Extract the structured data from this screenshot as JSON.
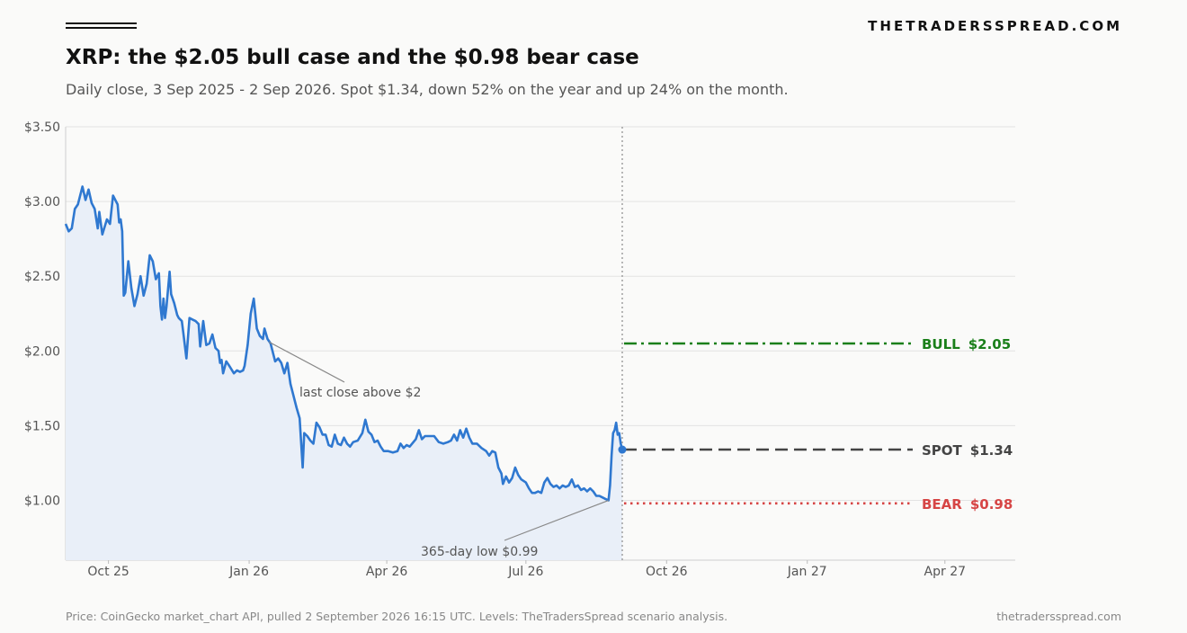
{
  "header": {
    "brand": "THETRADERSSPREAD.COM",
    "title": "XRP: the $2.05 bull case and the $0.98 bear case",
    "subtitle": "Daily close, 3 Sep 2025 - 2 Sep 2026. Spot $1.34, down 52% on the year and up 24% on the month."
  },
  "footer": {
    "source": "Price: CoinGecko market_chart API, pulled 2 September 2026 16:15 UTC. Levels: TheTradersSpread scenario analysis.",
    "site": "thetradersspread.com"
  },
  "colors": {
    "line": "#2f78d0",
    "fill": "#e9eff8",
    "bull": "#1a7f1a",
    "spot": "#444444",
    "bear": "#d64545",
    "grid": "#e3e3e3",
    "divider": "#999999"
  },
  "chart_data": {
    "type": "line",
    "title": "XRP: the $2.05 bull case and the $0.98 bear case",
    "xlabel": "",
    "ylabel": "",
    "ylim": [
      0.6,
      3.5
    ],
    "xlim": [
      "2025-09-03",
      "2027-05-17"
    ],
    "y_ticks": [
      {
        "value": 1.0,
        "label": "$1.00"
      },
      {
        "value": 1.5,
        "label": "$1.50"
      },
      {
        "value": 2.0,
        "label": "$2.00"
      },
      {
        "value": 2.5,
        "label": "$2.50"
      },
      {
        "value": 3.0,
        "label": "$3.00"
      },
      {
        "value": 3.5,
        "label": "$3.50"
      }
    ],
    "x_ticks": [
      {
        "date": "2025-10-01",
        "label": "Oct 25"
      },
      {
        "date": "2026-01-01",
        "label": "Jan 26"
      },
      {
        "date": "2026-04-01",
        "label": "Apr 26"
      },
      {
        "date": "2026-07-01",
        "label": "Jul 26"
      },
      {
        "date": "2026-10-01",
        "label": "Oct 26"
      },
      {
        "date": "2027-01-01",
        "label": "Jan 27"
      },
      {
        "date": "2027-04-01",
        "label": "Apr 27"
      }
    ],
    "grid": true,
    "series": [
      {
        "values": [
          [
            "2025-09-03",
            2.85
          ],
          [
            "2025-09-05",
            2.8
          ],
          [
            "2025-09-07",
            2.82
          ],
          [
            "2025-09-09",
            2.95
          ],
          [
            "2025-09-11",
            2.98
          ],
          [
            "2025-09-14",
            3.1
          ],
          [
            "2025-09-16",
            3.01
          ],
          [
            "2025-09-18",
            3.08
          ],
          [
            "2025-09-20",
            2.99
          ],
          [
            "2025-09-22",
            2.95
          ],
          [
            "2025-09-24",
            2.82
          ],
          [
            "2025-09-25",
            2.93
          ],
          [
            "2025-09-27",
            2.78
          ],
          [
            "2025-09-30",
            2.88
          ],
          [
            "2025-10-02",
            2.85
          ],
          [
            "2025-10-04",
            3.04
          ],
          [
            "2025-10-06",
            3.0
          ],
          [
            "2025-10-07",
            2.98
          ],
          [
            "2025-10-08",
            2.86
          ],
          [
            "2025-10-09",
            2.88
          ],
          [
            "2025-10-10",
            2.8
          ],
          [
            "2025-10-11",
            2.37
          ],
          [
            "2025-10-12",
            2.39
          ],
          [
            "2025-10-14",
            2.6
          ],
          [
            "2025-10-16",
            2.42
          ],
          [
            "2025-10-18",
            2.3
          ],
          [
            "2025-10-20",
            2.38
          ],
          [
            "2025-10-22",
            2.5
          ],
          [
            "2025-10-24",
            2.37
          ],
          [
            "2025-10-26",
            2.45
          ],
          [
            "2025-10-28",
            2.64
          ],
          [
            "2025-10-30",
            2.6
          ],
          [
            "2025-11-01",
            2.48
          ],
          [
            "2025-11-03",
            2.52
          ],
          [
            "2025-11-04",
            2.3
          ],
          [
            "2025-11-05",
            2.21
          ],
          [
            "2025-11-06",
            2.35
          ],
          [
            "2025-11-07",
            2.22
          ],
          [
            "2025-11-08",
            2.3
          ],
          [
            "2025-11-10",
            2.53
          ],
          [
            "2025-11-11",
            2.38
          ],
          [
            "2025-11-13",
            2.32
          ],
          [
            "2025-11-15",
            2.24
          ],
          [
            "2025-11-16",
            2.22
          ],
          [
            "2025-11-18",
            2.2
          ],
          [
            "2025-11-19",
            2.12
          ],
          [
            "2025-11-21",
            1.95
          ],
          [
            "2025-11-23",
            2.22
          ],
          [
            "2025-11-25",
            2.21
          ],
          [
            "2025-11-27",
            2.2
          ],
          [
            "2025-11-29",
            2.18
          ],
          [
            "2025-11-30",
            2.03
          ],
          [
            "2025-12-02",
            2.2
          ],
          [
            "2025-12-04",
            2.04
          ],
          [
            "2025-12-06",
            2.05
          ],
          [
            "2025-12-08",
            2.11
          ],
          [
            "2025-12-10",
            2.02
          ],
          [
            "2025-12-12",
            2.0
          ],
          [
            "2025-12-13",
            1.92
          ],
          [
            "2025-12-14",
            1.94
          ],
          [
            "2025-12-15",
            1.85
          ],
          [
            "2025-12-17",
            1.93
          ],
          [
            "2025-12-19",
            1.9
          ],
          [
            "2025-12-22",
            1.85
          ],
          [
            "2025-12-24",
            1.87
          ],
          [
            "2025-12-26",
            1.86
          ],
          [
            "2025-12-28",
            1.87
          ],
          [
            "2025-12-29",
            1.9
          ],
          [
            "2025-12-31",
            2.04
          ],
          [
            "2026-01-02",
            2.25
          ],
          [
            "2026-01-04",
            2.35
          ],
          [
            "2026-01-05",
            2.25
          ],
          [
            "2026-01-06",
            2.15
          ],
          [
            "2026-01-08",
            2.1
          ],
          [
            "2026-01-10",
            2.08
          ],
          [
            "2026-01-11",
            2.15
          ],
          [
            "2026-01-13",
            2.08
          ],
          [
            "2026-01-15",
            2.05
          ],
          [
            "2026-01-17",
            1.97
          ],
          [
            "2026-01-18",
            1.93
          ],
          [
            "2026-01-20",
            1.95
          ],
          [
            "2026-01-22",
            1.92
          ],
          [
            "2026-01-24",
            1.85
          ],
          [
            "2026-01-26",
            1.92
          ],
          [
            "2026-01-28",
            1.78
          ],
          [
            "2026-01-30",
            1.7
          ],
          [
            "2026-02-01",
            1.62
          ],
          [
            "2026-02-03",
            1.55
          ],
          [
            "2026-02-05",
            1.22
          ],
          [
            "2026-02-06",
            1.45
          ],
          [
            "2026-02-08",
            1.43
          ],
          [
            "2026-02-10",
            1.4
          ],
          [
            "2026-02-12",
            1.38
          ],
          [
            "2026-02-14",
            1.52
          ],
          [
            "2026-02-16",
            1.49
          ],
          [
            "2026-02-18",
            1.44
          ],
          [
            "2026-02-20",
            1.44
          ],
          [
            "2026-02-22",
            1.37
          ],
          [
            "2026-02-24",
            1.36
          ],
          [
            "2026-02-26",
            1.44
          ],
          [
            "2026-02-28",
            1.38
          ],
          [
            "2026-03-02",
            1.37
          ],
          [
            "2026-03-04",
            1.42
          ],
          [
            "2026-03-06",
            1.38
          ],
          [
            "2026-03-08",
            1.36
          ],
          [
            "2026-03-10",
            1.39
          ],
          [
            "2026-03-13",
            1.4
          ],
          [
            "2026-03-16",
            1.45
          ],
          [
            "2026-03-18",
            1.54
          ],
          [
            "2026-03-20",
            1.46
          ],
          [
            "2026-03-22",
            1.44
          ],
          [
            "2026-03-24",
            1.39
          ],
          [
            "2026-03-26",
            1.4
          ],
          [
            "2026-03-28",
            1.36
          ],
          [
            "2026-03-30",
            1.33
          ],
          [
            "2026-04-02",
            1.33
          ],
          [
            "2026-04-05",
            1.32
          ],
          [
            "2026-04-08",
            1.33
          ],
          [
            "2026-04-10",
            1.38
          ],
          [
            "2026-04-12",
            1.35
          ],
          [
            "2026-04-14",
            1.37
          ],
          [
            "2026-04-16",
            1.36
          ],
          [
            "2026-04-20",
            1.41
          ],
          [
            "2026-04-22",
            1.47
          ],
          [
            "2026-04-24",
            1.41
          ],
          [
            "2026-04-26",
            1.43
          ],
          [
            "2026-04-29",
            1.43
          ],
          [
            "2026-05-02",
            1.43
          ],
          [
            "2026-05-05",
            1.39
          ],
          [
            "2026-05-08",
            1.38
          ],
          [
            "2026-05-11",
            1.39
          ],
          [
            "2026-05-13",
            1.4
          ],
          [
            "2026-05-15",
            1.44
          ],
          [
            "2026-05-17",
            1.4
          ],
          [
            "2026-05-19",
            1.47
          ],
          [
            "2026-05-21",
            1.42
          ],
          [
            "2026-05-23",
            1.48
          ],
          [
            "2026-05-25",
            1.42
          ],
          [
            "2026-05-27",
            1.38
          ],
          [
            "2026-05-30",
            1.38
          ],
          [
            "2026-06-02",
            1.35
          ],
          [
            "2026-06-05",
            1.33
          ],
          [
            "2026-06-07",
            1.3
          ],
          [
            "2026-06-09",
            1.33
          ],
          [
            "2026-06-11",
            1.32
          ],
          [
            "2026-06-13",
            1.22
          ],
          [
            "2026-06-15",
            1.18
          ],
          [
            "2026-06-16",
            1.11
          ],
          [
            "2026-06-18",
            1.16
          ],
          [
            "2026-06-20",
            1.12
          ],
          [
            "2026-06-22",
            1.15
          ],
          [
            "2026-06-24",
            1.22
          ],
          [
            "2026-06-26",
            1.17
          ],
          [
            "2026-06-28",
            1.14
          ],
          [
            "2026-07-01",
            1.12
          ],
          [
            "2026-07-03",
            1.08
          ],
          [
            "2026-07-05",
            1.05
          ],
          [
            "2026-07-07",
            1.05
          ],
          [
            "2026-07-09",
            1.06
          ],
          [
            "2026-07-11",
            1.05
          ],
          [
            "2026-07-13",
            1.12
          ],
          [
            "2026-07-15",
            1.15
          ],
          [
            "2026-07-17",
            1.11
          ],
          [
            "2026-07-19",
            1.09
          ],
          [
            "2026-07-21",
            1.1
          ],
          [
            "2026-07-23",
            1.08
          ],
          [
            "2026-07-25",
            1.1
          ],
          [
            "2026-07-27",
            1.09
          ],
          [
            "2026-07-29",
            1.1
          ],
          [
            "2026-07-31",
            1.14
          ],
          [
            "2026-08-02",
            1.09
          ],
          [
            "2026-08-04",
            1.1
          ],
          [
            "2026-08-06",
            1.07
          ],
          [
            "2026-08-08",
            1.08
          ],
          [
            "2026-08-10",
            1.06
          ],
          [
            "2026-08-12",
            1.08
          ],
          [
            "2026-08-14",
            1.06
          ],
          [
            "2026-08-16",
            1.03
          ],
          [
            "2026-08-18",
            1.03
          ],
          [
            "2026-08-20",
            1.02
          ],
          [
            "2026-08-22",
            1.01
          ],
          [
            "2026-08-24",
            1.0
          ],
          [
            "2026-08-25",
            1.1
          ],
          [
            "2026-08-26",
            1.3
          ],
          [
            "2026-08-27",
            1.45
          ],
          [
            "2026-08-28",
            1.47
          ],
          [
            "2026-08-29",
            1.52
          ],
          [
            "2026-08-30",
            1.44
          ],
          [
            "2026-08-31",
            1.45
          ],
          [
            "2026-09-01",
            1.38
          ],
          [
            "2026-09-02",
            1.34
          ]
        ]
      }
    ],
    "spot_marker": {
      "date": "2026-09-02",
      "value": 1.34
    },
    "divider_date": "2026-09-02",
    "levels": [
      {
        "key": "bull",
        "name": "BULL",
        "value": 2.05,
        "label": "$2.05",
        "style": "dashdot"
      },
      {
        "key": "spot",
        "name": "SPOT",
        "value": 1.34,
        "label": "$1.34",
        "style": "dashed"
      },
      {
        "key": "bear",
        "name": "BEAR",
        "value": 0.98,
        "label": "$0.98",
        "style": "dotted"
      }
    ],
    "annotations": [
      {
        "text": "last close above $2",
        "date": "2026-01-14",
        "value": 2.06
      },
      {
        "text": "365-day low $0.99",
        "date": "2026-08-24",
        "value": 1.0
      }
    ]
  }
}
